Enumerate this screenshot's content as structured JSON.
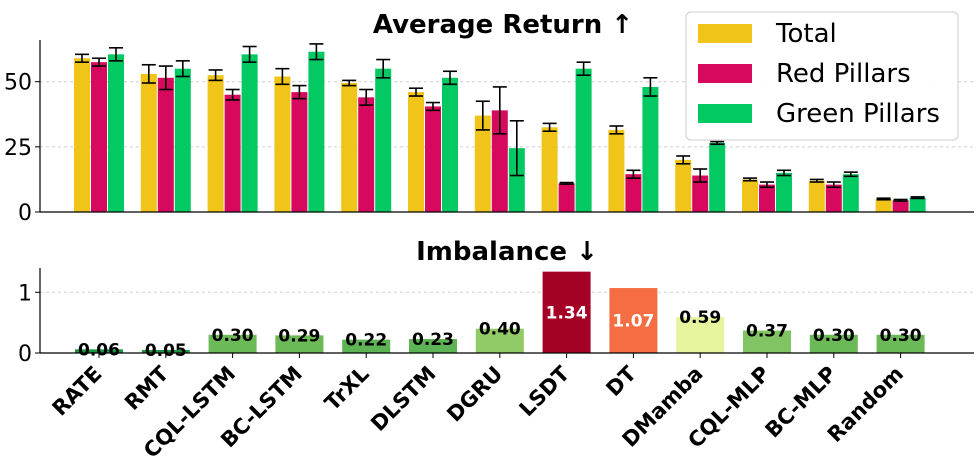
{
  "chart_data": [
    {
      "type": "bar",
      "title": "Average Return ↑",
      "xlabel": "",
      "ylabel": "",
      "ylim": [
        0,
        66
      ],
      "yticks": [
        0,
        25,
        50
      ],
      "grid": true,
      "legend_position": "top-right",
      "categories": [
        "RATE",
        "RMT",
        "CQL-LSTM",
        "BC-LSTM",
        "TrXL",
        "DLSTM",
        "DGRU",
        "LSDT",
        "DT",
        "DMamba",
        "CQL-MLP",
        "BC-MLP",
        "Random"
      ],
      "series": [
        {
          "name": "Total",
          "color": "#f0c419",
          "values": [
            59,
            53,
            52.5,
            52,
            49.5,
            46,
            37,
            32.5,
            31.5,
            20,
            12.5,
            12,
            5
          ],
          "errors": [
            1.5,
            3.5,
            2,
            3,
            1,
            1.5,
            5.5,
            1.5,
            1.5,
            1.5,
            0.5,
            0.5,
            0.3
          ]
        },
        {
          "name": "Red Pillars",
          "color": "#d6095f",
          "values": [
            57.5,
            51.5,
            45,
            46,
            44,
            40.5,
            39,
            11,
            14.5,
            14,
            10.5,
            10.5,
            4.5
          ],
          "errors": [
            1.5,
            4.5,
            2,
            2.5,
            3,
            1.5,
            9,
            0.3,
            1.5,
            2.5,
            1,
            1,
            0.3
          ]
        },
        {
          "name": "Green Pillars",
          "color": "#02c961",
          "values": [
            60.5,
            55,
            60.5,
            61.5,
            55,
            51.5,
            24.5,
            55,
            48,
            26.5,
            15,
            14.5,
            5.5
          ],
          "errors": [
            2.5,
            3,
            3,
            3,
            3.5,
            2.5,
            10.5,
            2.5,
            3.5,
            0.5,
            1,
            0.8,
            0.3
          ]
        }
      ]
    },
    {
      "type": "bar",
      "title": "Imbalance ↓",
      "xlabel": "",
      "ylabel": "",
      "ylim": [
        0,
        1.4
      ],
      "yticks": [
        0,
        1
      ],
      "grid": true,
      "categories": [
        "RATE",
        "RMT",
        "CQL-LSTM",
        "BC-LSTM",
        "TrXL",
        "DLSTM",
        "DGRU",
        "LSDT",
        "DT",
        "DMamba",
        "CQL-MLP",
        "BC-MLP",
        "Random"
      ],
      "values": [
        0.06,
        0.05,
        0.3,
        0.29,
        0.22,
        0.23,
        0.4,
        1.34,
        1.07,
        0.59,
        0.37,
        0.3,
        0.3
      ],
      "labels": [
        "0.06",
        "0.05",
        "0.30",
        "0.29",
        "0.22",
        "0.23",
        "0.40",
        "1.34",
        "1.07",
        "0.59",
        "0.37",
        "0.30",
        "0.30"
      ],
      "colors": [
        "#1a9641",
        "#1a9641",
        "#6cba57",
        "#6cba57",
        "#5db454",
        "#5db454",
        "#91cb68",
        "#a50026",
        "#f46d43",
        "#e6f59d",
        "#80c463",
        "#6cba57",
        "#6cba57"
      ],
      "label_colors": [
        "#000000",
        "#000000",
        "#000000",
        "#000000",
        "#000000",
        "#000000",
        "#000000",
        "#ffffff",
        "#ffffff",
        "#000000",
        "#000000",
        "#000000",
        "#000000"
      ]
    }
  ]
}
